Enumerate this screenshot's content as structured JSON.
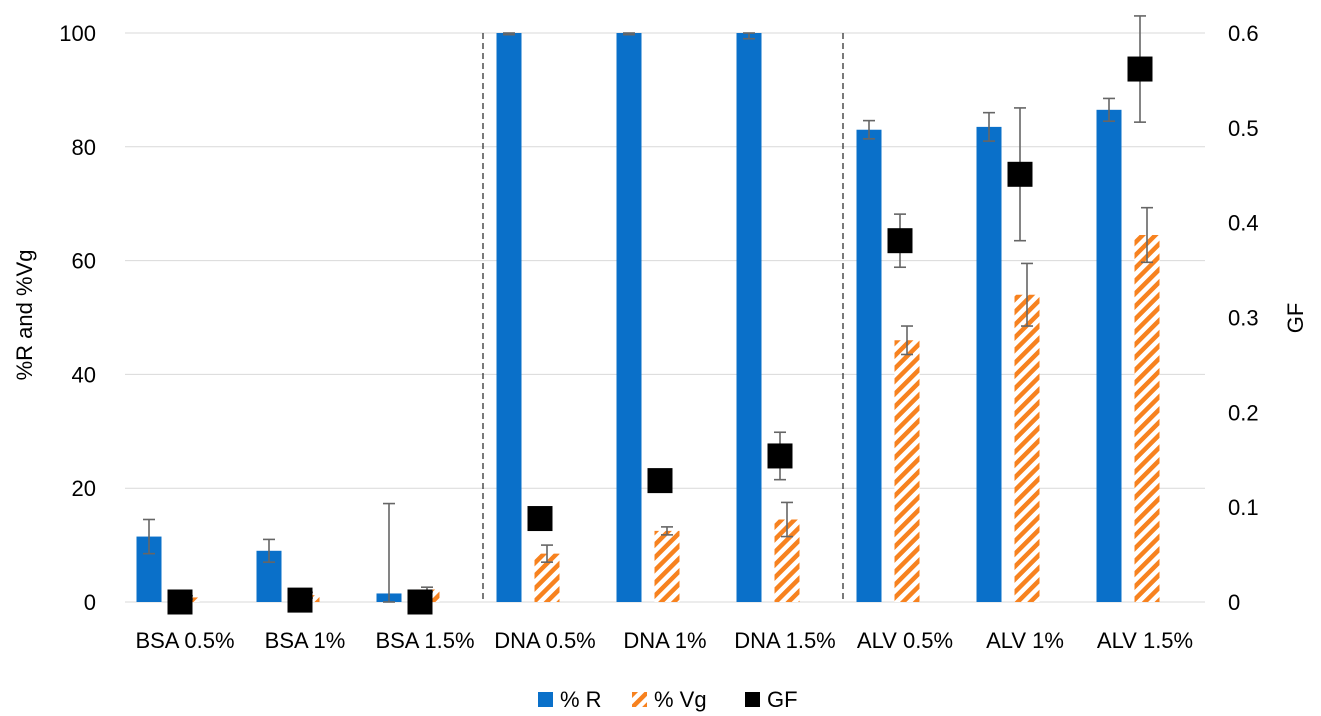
{
  "chart_data": {
    "type": "bar",
    "title": "",
    "xlabel": "",
    "ylabel": "%R and %Vg",
    "y2label": "GF",
    "categories": [
      "BSA 0.5%",
      "BSA 1%",
      "BSA 1.5%",
      "DNA 0.5%",
      "DNA 1%",
      "DNA 1.5%",
      "ALV 0.5%",
      "ALV 1%",
      "ALV 1.5%"
    ],
    "ylim": [
      0,
      100
    ],
    "yticks": [
      0,
      20,
      40,
      60,
      80,
      100
    ],
    "y2lim": [
      0,
      0.6
    ],
    "y2ticks": [
      "0",
      "0.1",
      "0.2",
      "0.3",
      "0.4",
      "0.5",
      "0.6"
    ],
    "grid": true,
    "group_separators_after": [
      3,
      6
    ],
    "legend_position": "bottom",
    "series": [
      {
        "name": "% R",
        "kind": "bar",
        "axis": "left",
        "color": "#0A70C9",
        "values": [
          11.5,
          9,
          1.5,
          100,
          100,
          100,
          83,
          83.5,
          86.5
        ],
        "errors": [
          3,
          2,
          15.8,
          0.3,
          0.3,
          1,
          1.6,
          2.5,
          2
        ]
      },
      {
        "name": "% Vg",
        "kind": "bar-hatched",
        "axis": "left",
        "color": "#F7821F",
        "values": [
          0.8,
          1.2,
          2.2,
          8.5,
          12.5,
          14.5,
          46,
          54,
          64.5
        ],
        "errors": [
          0.3,
          0.5,
          0.4,
          1.5,
          0.7,
          3,
          2.5,
          5.5,
          4.8
        ]
      },
      {
        "name": "GF",
        "kind": "marker",
        "axis": "right",
        "color": "#000000",
        "values": [
          0,
          0.002,
          0,
          0.088,
          0.128,
          0.154,
          0.381,
          0.451,
          0.562
        ],
        "errors": [
          0,
          0,
          0,
          0.01,
          0,
          0.025,
          0.028,
          0.07,
          0.056
        ]
      }
    ]
  }
}
